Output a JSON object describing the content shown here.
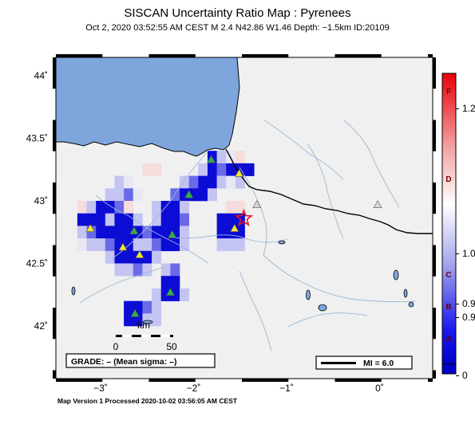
{
  "title": "SISCAN Uncertainty Ratio Map : Pyrenees",
  "subtitle": "Oct  2, 2020 03:52:55 AM CEST   M 2.4   N42.86 W1.46   Depth: −1.5km   ID:20109",
  "footer": "Map Version 1 Processed 2020-10-02 03:56:05 AM CEST",
  "grade_label": "GRADE: – (Mean sigma: –)",
  "mi_label": "MI = 6.0",
  "scale": {
    "unit": "km",
    "tick_0": "0",
    "tick_50": "50"
  },
  "lat_ticks": [
    {
      "label": "44˚",
      "value": 44.0
    },
    {
      "label": "43.5˚",
      "value": 43.5
    },
    {
      "label": "43˚",
      "value": 43.0
    },
    {
      "label": "42.5˚",
      "value": 42.5
    },
    {
      "label": "42˚",
      "value": 42.0
    }
  ],
  "lon_ticks": [
    {
      "label": "−3˚",
      "value": -3.0
    },
    {
      "label": "−2˚",
      "value": -2.0
    },
    {
      "label": "−1˚",
      "value": -1.0
    },
    {
      "label": "0˚",
      "value": 0.0
    }
  ],
  "colorbar": {
    "letters": [
      "F",
      "D",
      "C",
      "B",
      "A"
    ],
    "values": [
      "1.2",
      "1.0",
      "0.9",
      "0.9",
      "0"
    ]
  },
  "colors": {
    "sea": "#7ea6dc",
    "land": "#f0f0f0",
    "river": "#9ab8d6",
    "border": "#000000",
    "station_green": "#2db14a",
    "station_yellow": "#f2e82a",
    "station_gray": "#d8d8d8",
    "epicenter": "#e8141a"
  },
  "map": {
    "epicenter": {
      "lat": 42.86,
      "lon": -1.46
    },
    "stations": [
      {
        "lat": 43.33,
        "lon": -1.81,
        "color": "green"
      },
      {
        "lat": 43.22,
        "lon": -1.51,
        "color": "yellow"
      },
      {
        "lat": 43.05,
        "lon": -2.05,
        "color": "green"
      },
      {
        "lat": 42.97,
        "lon": -1.32,
        "color": "gray"
      },
      {
        "lat": 42.97,
        "lon": -0.02,
        "color": "gray"
      },
      {
        "lat": 42.78,
        "lon": -1.56,
        "color": "yellow"
      },
      {
        "lat": 42.78,
        "lon": -3.11,
        "color": "yellow"
      },
      {
        "lat": 42.76,
        "lon": -2.64,
        "color": "green"
      },
      {
        "lat": 42.73,
        "lon": -2.23,
        "color": "green"
      },
      {
        "lat": 42.63,
        "lon": -2.76,
        "color": "yellow"
      },
      {
        "lat": 42.57,
        "lon": -2.58,
        "color": "yellow"
      },
      {
        "lat": 42.27,
        "lon": -2.25,
        "color": "green"
      },
      {
        "lat": 42.1,
        "lon": -2.63,
        "color": "green"
      }
    ],
    "cells": [
      {
        "lat": 43.35,
        "lon": -1.8,
        "v": 3
      },
      {
        "lat": 43.35,
        "lon": -1.7,
        "v": 1
      },
      {
        "lat": 43.35,
        "lon": -1.6,
        "v": 0
      },
      {
        "lat": 43.35,
        "lon": -1.5,
        "v": -1
      },
      {
        "lat": 43.25,
        "lon": -1.9,
        "v": 1
      },
      {
        "lat": 43.25,
        "lon": -1.8,
        "v": 3
      },
      {
        "lat": 43.25,
        "lon": -1.7,
        "v": 2
      },
      {
        "lat": 43.25,
        "lon": -1.6,
        "v": 3
      },
      {
        "lat": 43.25,
        "lon": -1.5,
        "v": 3
      },
      {
        "lat": 43.25,
        "lon": -1.4,
        "v": 3
      },
      {
        "lat": 43.25,
        "lon": -2.5,
        "v": -1
      },
      {
        "lat": 43.25,
        "lon": -2.4,
        "v": -1
      },
      {
        "lat": 43.15,
        "lon": -2.1,
        "v": 1
      },
      {
        "lat": 43.15,
        "lon": -2.0,
        "v": 2
      },
      {
        "lat": 43.15,
        "lon": -1.9,
        "v": 3
      },
      {
        "lat": 43.15,
        "lon": -1.8,
        "v": 3
      },
      {
        "lat": 43.15,
        "lon": -1.7,
        "v": 1
      },
      {
        "lat": 43.15,
        "lon": -1.6,
        "v": 0
      },
      {
        "lat": 43.15,
        "lon": -1.5,
        "v": 1
      },
      {
        "lat": 43.15,
        "lon": -2.8,
        "v": 1
      },
      {
        "lat": 43.15,
        "lon": -2.7,
        "v": 0
      },
      {
        "lat": 43.05,
        "lon": -2.9,
        "v": 1
      },
      {
        "lat": 43.05,
        "lon": -2.8,
        "v": 1
      },
      {
        "lat": 43.05,
        "lon": -2.7,
        "v": 2
      },
      {
        "lat": 43.05,
        "lon": -2.6,
        "v": 0
      },
      {
        "lat": 43.05,
        "lon": -2.2,
        "v": 2
      },
      {
        "lat": 43.05,
        "lon": -2.1,
        "v": 3
      },
      {
        "lat": 43.05,
        "lon": -2.0,
        "v": 3
      },
      {
        "lat": 43.05,
        "lon": -1.9,
        "v": 3
      },
      {
        "lat": 43.05,
        "lon": -1.8,
        "v": 1
      },
      {
        "lat": 42.95,
        "lon": -3.2,
        "v": -1
      },
      {
        "lat": 42.95,
        "lon": -3.1,
        "v": 1
      },
      {
        "lat": 42.95,
        "lon": -3.0,
        "v": 3
      },
      {
        "lat": 42.95,
        "lon": -2.9,
        "v": 3
      },
      {
        "lat": 42.95,
        "lon": -2.8,
        "v": 2
      },
      {
        "lat": 42.95,
        "lon": -2.7,
        "v": -1
      },
      {
        "lat": 42.95,
        "lon": -2.4,
        "v": 1
      },
      {
        "lat": 42.95,
        "lon": -2.3,
        "v": 3
      },
      {
        "lat": 42.95,
        "lon": -2.2,
        "v": 3
      },
      {
        "lat": 42.95,
        "lon": -2.1,
        "v": 1
      },
      {
        "lat": 42.95,
        "lon": -1.6,
        "v": -1
      },
      {
        "lat": 42.95,
        "lon": -1.5,
        "v": -1
      },
      {
        "lat": 42.85,
        "lon": -3.2,
        "v": 3
      },
      {
        "lat": 42.85,
        "lon": -3.1,
        "v": 3
      },
      {
        "lat": 42.85,
        "lon": -3.0,
        "v": 3
      },
      {
        "lat": 42.85,
        "lon": -2.9,
        "v": 1
      },
      {
        "lat": 42.85,
        "lon": -2.8,
        "v": 3
      },
      {
        "lat": 42.85,
        "lon": -2.7,
        "v": 3
      },
      {
        "lat": 42.85,
        "lon": -2.6,
        "v": 1
      },
      {
        "lat": 42.85,
        "lon": -2.4,
        "v": 1
      },
      {
        "lat": 42.85,
        "lon": -2.3,
        "v": 3
      },
      {
        "lat": 42.85,
        "lon": -2.2,
        "v": 3
      },
      {
        "lat": 42.85,
        "lon": -2.1,
        "v": 2
      },
      {
        "lat": 42.85,
        "lon": -1.7,
        "v": 3
      },
      {
        "lat": 42.85,
        "lon": -1.6,
        "v": 3
      },
      {
        "lat": 42.85,
        "lon": -1.5,
        "v": 3
      },
      {
        "lat": 42.75,
        "lon": -3.2,
        "v": 1
      },
      {
        "lat": 42.75,
        "lon": -3.1,
        "v": 2
      },
      {
        "lat": 42.75,
        "lon": -3.0,
        "v": 3
      },
      {
        "lat": 42.75,
        "lon": -2.9,
        "v": 3
      },
      {
        "lat": 42.75,
        "lon": -2.8,
        "v": 3
      },
      {
        "lat": 42.75,
        "lon": -2.7,
        "v": 3
      },
      {
        "lat": 42.75,
        "lon": -2.6,
        "v": 3
      },
      {
        "lat": 42.75,
        "lon": -2.5,
        "v": 2
      },
      {
        "lat": 42.75,
        "lon": -2.4,
        "v": 3
      },
      {
        "lat": 42.75,
        "lon": -2.3,
        "v": 3
      },
      {
        "lat": 42.75,
        "lon": -2.2,
        "v": 3
      },
      {
        "lat": 42.75,
        "lon": -2.1,
        "v": 1
      },
      {
        "lat": 42.75,
        "lon": -1.7,
        "v": 3
      },
      {
        "lat": 42.75,
        "lon": -1.6,
        "v": 3
      },
      {
        "lat": 42.75,
        "lon": -1.5,
        "v": 3
      },
      {
        "lat": 42.65,
        "lon": -3.2,
        "v": 0
      },
      {
        "lat": 42.65,
        "lon": -3.1,
        "v": 1
      },
      {
        "lat": 42.65,
        "lon": -3.0,
        "v": 1
      },
      {
        "lat": 42.65,
        "lon": -2.9,
        "v": 2
      },
      {
        "lat": 42.65,
        "lon": -2.8,
        "v": 3
      },
      {
        "lat": 42.65,
        "lon": -2.7,
        "v": 3
      },
      {
        "lat": 42.65,
        "lon": -2.6,
        "v": 1
      },
      {
        "lat": 42.65,
        "lon": -2.5,
        "v": 1
      },
      {
        "lat": 42.65,
        "lon": -2.4,
        "v": 2
      },
      {
        "lat": 42.65,
        "lon": -2.3,
        "v": 3
      },
      {
        "lat": 42.65,
        "lon": -2.2,
        "v": 3
      },
      {
        "lat": 42.65,
        "lon": -2.1,
        "v": 1
      },
      {
        "lat": 42.65,
        "lon": -1.7,
        "v": 1
      },
      {
        "lat": 42.65,
        "lon": -1.6,
        "v": 1
      },
      {
        "lat": 42.65,
        "lon": -1.5,
        "v": 1
      },
      {
        "lat": 42.55,
        "lon": -2.9,
        "v": 1
      },
      {
        "lat": 42.55,
        "lon": -2.8,
        "v": 3
      },
      {
        "lat": 42.55,
        "lon": -2.7,
        "v": 3
      },
      {
        "lat": 42.55,
        "lon": -2.6,
        "v": 3
      },
      {
        "lat": 42.55,
        "lon": -2.5,
        "v": 3
      },
      {
        "lat": 42.55,
        "lon": -2.4,
        "v": 1
      },
      {
        "lat": 42.45,
        "lon": -2.8,
        "v": 1
      },
      {
        "lat": 42.45,
        "lon": -2.7,
        "v": 1
      },
      {
        "lat": 42.45,
        "lon": -2.6,
        "v": 2
      },
      {
        "lat": 42.45,
        "lon": -2.5,
        "v": 1
      },
      {
        "lat": 42.45,
        "lon": -2.3,
        "v": 1
      },
      {
        "lat": 42.45,
        "lon": -2.2,
        "v": 2
      },
      {
        "lat": 42.35,
        "lon": -2.3,
        "v": 3
      },
      {
        "lat": 42.35,
        "lon": -2.2,
        "v": 3
      },
      {
        "lat": 42.25,
        "lon": -2.4,
        "v": 1
      },
      {
        "lat": 42.25,
        "lon": -2.3,
        "v": 3
      },
      {
        "lat": 42.25,
        "lon": -2.2,
        "v": 3
      },
      {
        "lat": 42.25,
        "lon": -2.1,
        "v": 1
      },
      {
        "lat": 42.15,
        "lon": -2.7,
        "v": 3
      },
      {
        "lat": 42.15,
        "lon": -2.6,
        "v": 3
      },
      {
        "lat": 42.15,
        "lon": -2.5,
        "v": 2
      },
      {
        "lat": 42.15,
        "lon": -2.4,
        "v": 1
      },
      {
        "lat": 42.05,
        "lon": -2.7,
        "v": 3
      },
      {
        "lat": 42.05,
        "lon": -2.6,
        "v": 3
      },
      {
        "lat": 42.05,
        "lon": -2.5,
        "v": 1
      },
      {
        "lat": 42.05,
        "lon": -2.4,
        "v": 1
      }
    ]
  }
}
